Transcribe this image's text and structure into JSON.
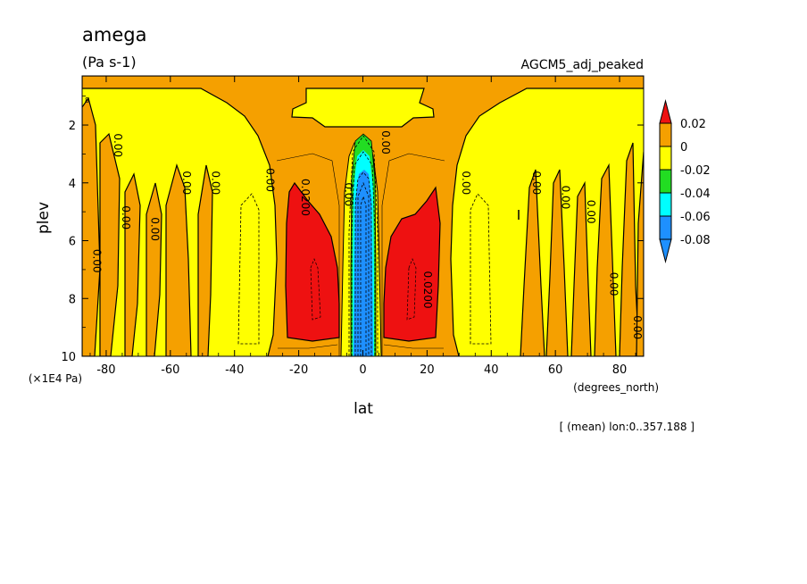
{
  "chart_data": {
    "type": "heatmap",
    "title": "amega",
    "units": "(Pa s-1)",
    "dataset": "AGCM5_adj_peaked",
    "xlabel": "lat",
    "ylabel": "plev",
    "x_unit": "(degrees_north)",
    "y_unit": "(×1E4 Pa)",
    "note": "[ (mean) lon:0..357.188 ]",
    "xlim": [
      -87.5,
      87.5
    ],
    "ylim": [
      10,
      0.3
    ],
    "x_ticks": [
      "-80",
      "-60",
      "-40",
      "-20",
      "0",
      "20",
      "40",
      "60",
      "80"
    ],
    "x_tick_values": [
      -80,
      -60,
      -40,
      -20,
      0,
      20,
      40,
      60,
      80
    ],
    "y_ticks": [
      "2",
      "4",
      "6",
      "8",
      "10"
    ],
    "y_tick_values": [
      2,
      4,
      6,
      8,
      10
    ],
    "colorbar": {
      "labels": [
        "0.02",
        "0",
        "-0.02",
        "-0.04",
        "-0.06",
        "-0.08"
      ],
      "bins": [
        {
          "range": [
            0.02,
            0.04
          ],
          "color": "#ee1111"
        },
        {
          "range": [
            0,
            0.02
          ],
          "color": "#f5a000"
        },
        {
          "range": [
            -0.02,
            0
          ],
          "color": "#ffff00"
        },
        {
          "range": [
            -0.04,
            -0.02
          ],
          "color": "#22dd22"
        },
        {
          "range": [
            -0.06,
            -0.04
          ],
          "color": "#00ffff"
        },
        {
          "range": [
            -0.08,
            -0.06
          ],
          "color": "#1e90ff"
        },
        {
          "range": [
            -0.1,
            -0.08
          ],
          "color": "#1e90ff"
        }
      ]
    },
    "contour_labels": [
      {
        "text": "0.00",
        "lat": -84,
        "plev": 6.7
      },
      {
        "text": "0.00",
        "lat": -77.5,
        "plev": 2.7
      },
      {
        "text": "0.00",
        "lat": -75,
        "plev": 5.2
      },
      {
        "text": "0.00",
        "lat": -66,
        "plev": 5.6
      },
      {
        "text": "0.00",
        "lat": -56,
        "plev": 4.0
      },
      {
        "text": "0.00",
        "lat": -47,
        "plev": 4.0
      },
      {
        "text": "0.00",
        "lat": -30,
        "plev": 3.9
      },
      {
        "text": "0.0200",
        "lat": -19,
        "plev": 4.5
      },
      {
        "text": "0.00",
        "lat": -5.5,
        "plev": 4.4
      },
      {
        "text": "0.00",
        "lat": 6,
        "plev": 2.6
      },
      {
        "text": "0.0200",
        "lat": 19,
        "plev": 7.7
      },
      {
        "text": "0.00",
        "lat": 31,
        "plev": 4.0
      },
      {
        "text": "0.00",
        "lat": 53,
        "plev": 4.0
      },
      {
        "text": "0.00",
        "lat": 62,
        "plev": 4.5
      },
      {
        "text": "0.00",
        "lat": 70,
        "plev": 5.0
      },
      {
        "text": "0.00",
        "lat": 77,
        "plev": 7.5
      },
      {
        "text": "0.00",
        "lat": 84.5,
        "plev": 9.0
      }
    ]
  }
}
